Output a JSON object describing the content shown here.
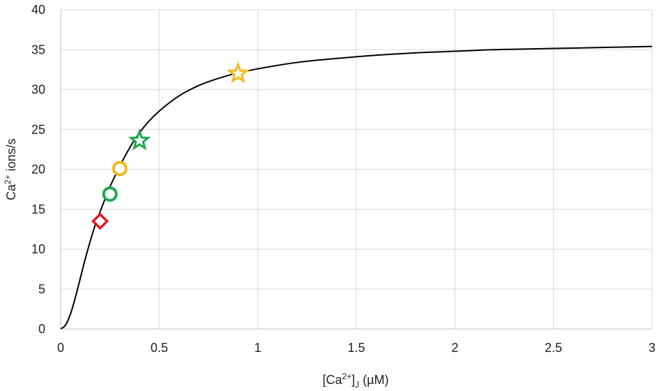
{
  "chart_data": {
    "type": "line",
    "title": "",
    "xlabel": {
      "pre": "[Ca",
      "sup": "2+",
      "mid": "]",
      "sub": "J",
      "post": " (µM)"
    },
    "ylabel": {
      "pre": "Ca",
      "sup": "2+",
      "post": " ions/s"
    },
    "xlim": [
      0,
      3
    ],
    "ylim": [
      0,
      40
    ],
    "xticks": [
      0,
      0.5,
      1,
      1.5,
      2,
      2.5,
      3
    ],
    "xtick_labels": [
      "0",
      "0.5",
      "1",
      "1.5",
      "2",
      "2.5",
      "3"
    ],
    "yticks": [
      0,
      5,
      10,
      15,
      20,
      25,
      30,
      35,
      40
    ],
    "ytick_labels": [
      "0",
      "5",
      "10",
      "15",
      "20",
      "25",
      "30",
      "35",
      "40"
    ],
    "grid": {
      "x": true,
      "y": true
    },
    "legend": "none",
    "curve": {
      "x": [
        0,
        0.025,
        0.05,
        0.075,
        0.1,
        0.125,
        0.15,
        0.175,
        0.2,
        0.25,
        0.3,
        0.35,
        0.4,
        0.45,
        0.5,
        0.6,
        0.7,
        0.8,
        0.9,
        1.0,
        1.2,
        1.4,
        1.6,
        1.8,
        2.0,
        2.2,
        2.4,
        2.6,
        2.8,
        3.0
      ],
      "y": [
        0,
        0.5,
        1.9,
        4.0,
        6.4,
        8.8,
        11.0,
        13.0,
        14.7,
        17.8,
        20.4,
        22.7,
        24.6,
        26.1,
        27.3,
        29.2,
        30.5,
        31.4,
        32.1,
        32.6,
        33.4,
        33.9,
        34.3,
        34.6,
        34.8,
        35.0,
        35.1,
        35.2,
        35.3,
        35.4
      ],
      "color": "#000000"
    },
    "markers": [
      {
        "shape": "diamond",
        "x": 0.2,
        "y": 13.5,
        "color": "#e8141c"
      },
      {
        "shape": "circle",
        "x": 0.25,
        "y": 16.9,
        "color": "#1fa64b"
      },
      {
        "shape": "circle",
        "x": 0.3,
        "y": 20.1,
        "color": "#f5b81a"
      },
      {
        "shape": "star",
        "x": 0.4,
        "y": 23.6,
        "color": "#1fa64b"
      },
      {
        "shape": "star",
        "x": 0.9,
        "y": 32.0,
        "color": "#f5b81a"
      }
    ]
  }
}
